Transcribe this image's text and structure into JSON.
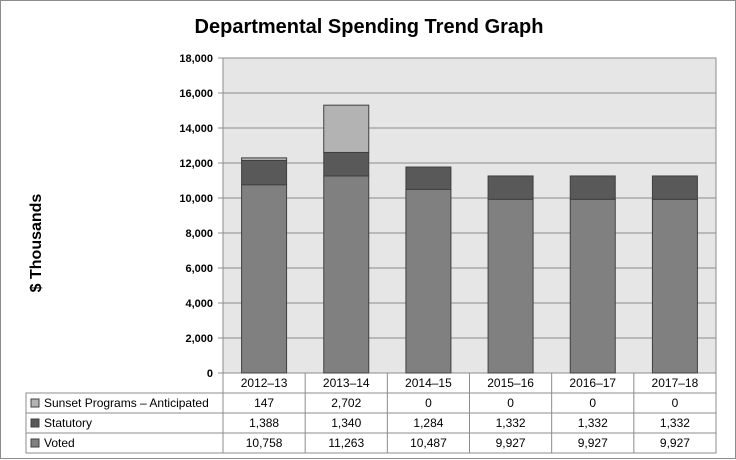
{
  "chart_data": {
    "type": "bar",
    "stacked": true,
    "title": "Departmental Spending Trend Graph",
    "ylabel": "$ Thousands",
    "xlabel": "",
    "ylim": [
      0,
      18000
    ],
    "yticks": [
      0,
      2000,
      4000,
      6000,
      8000,
      10000,
      12000,
      14000,
      16000,
      18000
    ],
    "ytick_labels": [
      "0",
      "2,000",
      "4,000",
      "6,000",
      "8,000",
      "10,000",
      "12,000",
      "14,000",
      "16,000",
      "18,000"
    ],
    "grid": true,
    "legend_placement": "data-table",
    "categories": [
      "2012–13",
      "2013–14",
      "2014–15",
      "2015–16",
      "2016–17",
      "2017–18"
    ],
    "series": [
      {
        "name": "Voted",
        "color": "#808080",
        "values": [
          10758,
          11263,
          10487,
          9927,
          9927,
          9927
        ],
        "labels": [
          "10,758",
          "11,263",
          "10,487",
          "9,927",
          "9,927",
          "9,927"
        ]
      },
      {
        "name": "Statutory",
        "color": "#595959",
        "values": [
          1388,
          1340,
          1284,
          1332,
          1332,
          1332
        ],
        "labels": [
          "1,388",
          "1,340",
          "1,284",
          "1,332",
          "1,332",
          "1,332"
        ]
      },
      {
        "name": "Sunset Programs – Anticipated",
        "color": "#b3b3b3",
        "values": [
          147,
          2702,
          0,
          0,
          0,
          0
        ],
        "labels": [
          "147",
          "2,702",
          "0",
          "0",
          "0",
          "0"
        ]
      }
    ],
    "plot_background": "#e6e6e6"
  }
}
